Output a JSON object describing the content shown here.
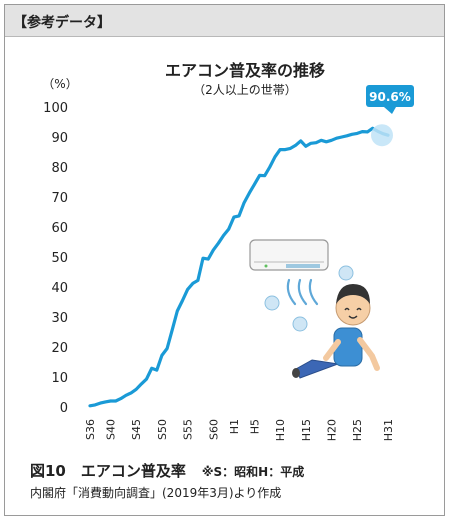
{
  "header": {
    "label": "【参考データ】"
  },
  "chart_data": {
    "type": "line",
    "title": "エアコン普及率の推移",
    "subtitle": "（2人以上の世帯）",
    "ylabel": "（%）",
    "ylim": [
      0,
      100
    ],
    "yticks": [
      0,
      10,
      20,
      30,
      40,
      50,
      60,
      70,
      80,
      90,
      100
    ],
    "xticks": [
      "S36",
      "S40",
      "S45",
      "S50",
      "S55",
      "S60",
      "H1",
      "H5",
      "H10",
      "H15",
      "H20",
      "H25",
      "H31"
    ],
    "callout": "90.6%",
    "line_color": "#1a9ad6",
    "grid": false,
    "series": [
      {
        "name": "",
        "x": [
          "S36",
          "S37",
          "S38",
          "S39",
          "S40",
          "S41",
          "S42",
          "S43",
          "S44",
          "S45",
          "S46",
          "S47",
          "S48",
          "S49",
          "S50",
          "S51",
          "S52",
          "S53",
          "S54",
          "S55",
          "S56",
          "S57",
          "S58",
          "S59",
          "S60",
          "S61",
          "S62",
          "S63",
          "H1",
          "H2",
          "H3",
          "H4",
          "H5",
          "H6",
          "H7",
          "H8",
          "H9",
          "H10",
          "H11",
          "H12",
          "H13",
          "H14",
          "H15",
          "H16",
          "H17",
          "H18",
          "H19",
          "H20",
          "H21",
          "H22",
          "H23",
          "H24",
          "H25",
          "H26",
          "H27",
          "H28",
          "H29",
          "H30",
          "H31"
        ],
        "values": [
          0.4,
          0.7,
          1.3,
          1.7,
          2.0,
          2.0,
          2.8,
          3.9,
          4.7,
          5.9,
          7.7,
          9.3,
          12.9,
          12.3,
          17.2,
          19.5,
          25.7,
          32.0,
          35.5,
          39.2,
          41.2,
          42.2,
          49.6,
          49.3,
          52.3,
          54.6,
          57.2,
          59.3,
          63.3,
          63.7,
          68.1,
          71.3,
          74.2,
          77.2,
          77.1,
          80.0,
          83.4,
          85.8,
          85.8,
          86.2,
          87.2,
          88.7,
          86.9,
          87.9,
          88.1,
          88.9,
          88.4,
          88.9,
          89.6,
          90.0,
          90.4,
          90.9,
          91.2,
          91.8,
          91.7,
          92.9,
          91.9,
          91.1,
          90.6
        ]
      }
    ]
  },
  "caption": {
    "line1": "図10　エアコン普及率",
    "note": "※S：昭和H：平成",
    "line2": "内閣府「消費動向調査」(2019年3月)より作成"
  },
  "illustration": {
    "icons": [
      "air-conditioner-icon",
      "relaxing-person-icon"
    ]
  }
}
